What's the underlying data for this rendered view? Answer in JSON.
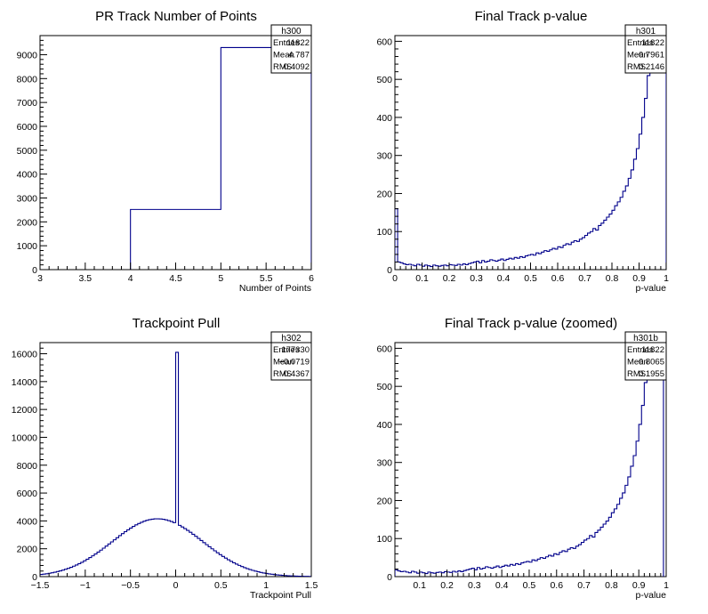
{
  "chart_data": [
    {
      "type": "histogram",
      "title": "PR Track Number of Points",
      "xlabel": "Number of Points",
      "ylabel": "",
      "xlim": [
        3,
        6
      ],
      "ylim": [
        0,
        9800
      ],
      "xticks": [
        {
          "v": 3,
          "l": "3"
        },
        {
          "v": 3.5,
          "l": "3.5"
        },
        {
          "v": 4,
          "l": "4"
        },
        {
          "v": 4.5,
          "l": "4.5"
        },
        {
          "v": 5,
          "l": "5"
        },
        {
          "v": 5.5,
          "l": "5.5"
        },
        {
          "v": 6,
          "l": "6"
        }
      ],
      "yticks": [
        {
          "v": 0,
          "l": "0"
        },
        {
          "v": 1000,
          "l": "1000"
        },
        {
          "v": 2000,
          "l": "2000"
        },
        {
          "v": 3000,
          "l": "3000"
        },
        {
          "v": 4000,
          "l": "4000"
        },
        {
          "v": 5000,
          "l": "5000"
        },
        {
          "v": 6000,
          "l": "6000"
        },
        {
          "v": 7000,
          "l": "7000"
        },
        {
          "v": 8000,
          "l": "8000"
        },
        {
          "v": 9000,
          "l": "9000"
        }
      ],
      "bins": {
        "edges": [
          4,
          5,
          6
        ],
        "values": [
          2520,
          9300
        ]
      },
      "stats": {
        "name": "h300",
        "rows": [
          [
            "Entries",
            "11822"
          ],
          [
            "Mean",
            "4.787"
          ],
          [
            "RMS",
            "0.4092"
          ]
        ]
      }
    },
    {
      "type": "histogram",
      "title": "Final Track p-value",
      "xlabel": "p-value",
      "ylabel": "",
      "xlim": [
        0,
        1
      ],
      "ylim": [
        0,
        615
      ],
      "xticks": [
        {
          "v": 0,
          "l": "0"
        },
        {
          "v": 0.1,
          "l": "0.1"
        },
        {
          "v": 0.2,
          "l": "0.2"
        },
        {
          "v": 0.3,
          "l": "0.3"
        },
        {
          "v": 0.4,
          "l": "0.4"
        },
        {
          "v": 0.5,
          "l": "0.5"
        },
        {
          "v": 0.6,
          "l": "0.6"
        },
        {
          "v": 0.7,
          "l": "0.7"
        },
        {
          "v": 0.8,
          "l": "0.8"
        },
        {
          "v": 0.9,
          "l": "0.9"
        },
        {
          "v": 1,
          "l": "1"
        }
      ],
      "yticks": [
        {
          "v": 0,
          "l": "0"
        },
        {
          "v": 100,
          "l": "100"
        },
        {
          "v": 200,
          "l": "200"
        },
        {
          "v": 300,
          "l": "300"
        },
        {
          "v": 400,
          "l": "400"
        },
        {
          "v": 500,
          "l": "500"
        },
        {
          "v": 600,
          "l": "600"
        }
      ],
      "bins": {
        "start": 0,
        "width": 0.01,
        "values": [
          160,
          20,
          18,
          15,
          13,
          14,
          12,
          10,
          14,
          12,
          9,
          12,
          10,
          8,
          12,
          10,
          9,
          11,
          12,
          10,
          13,
          12,
          11,
          14,
          12,
          15,
          13,
          16,
          18,
          20,
          22,
          18,
          24,
          20,
          22,
          26,
          24,
          22,
          25,
          28,
          24,
          27,
          30,
          28,
          32,
          30,
          34,
          32,
          36,
          38,
          40,
          38,
          44,
          42,
          46,
          50,
          48,
          52,
          56,
          54,
          60,
          58,
          64,
          68,
          66,
          72,
          76,
          74,
          80,
          84,
          90,
          96,
          100,
          108,
          104,
          116,
          122,
          130,
          138,
          146,
          156,
          168,
          178,
          190,
          206,
          220,
          240,
          262,
          290,
          318,
          356,
          400,
          450,
          510,
          540,
          570,
          590,
          600,
          610,
          615
        ]
      },
      "stats": {
        "name": "h301",
        "rows": [
          [
            "Entries",
            "11822"
          ],
          [
            "Mean",
            "0.7961"
          ],
          [
            "RMS",
            "0.2146"
          ]
        ]
      }
    },
    {
      "type": "histogram",
      "title": "Trackpoint Pull",
      "xlabel": "Trackpoint Pull",
      "ylabel": "",
      "xlim": [
        -1.5,
        1.5
      ],
      "ylim": [
        0,
        16800
      ],
      "xticks": [
        {
          "v": -1.5,
          "l": "−1.5"
        },
        {
          "v": -1,
          "l": "−1"
        },
        {
          "v": -0.5,
          "l": "−0.5"
        },
        {
          "v": 0,
          "l": "0"
        },
        {
          "v": 0.5,
          "l": "0.5"
        },
        {
          "v": 1,
          "l": "1"
        },
        {
          "v": 1.5,
          "l": "1.5"
        }
      ],
      "yticks": [
        {
          "v": 0,
          "l": "0"
        },
        {
          "v": 2000,
          "l": "2000"
        },
        {
          "v": 4000,
          "l": "4000"
        },
        {
          "v": 6000,
          "l": "6000"
        },
        {
          "v": 8000,
          "l": "8000"
        },
        {
          "v": 10000,
          "l": "10000"
        },
        {
          "v": 12000,
          "l": "12000"
        },
        {
          "v": 14000,
          "l": "14000"
        },
        {
          "v": 16000,
          "l": "16000"
        }
      ],
      "gaussian": {
        "amplitude": 4150,
        "mean": -0.2,
        "sigma": 0.5
      },
      "spike": {
        "x": 0.0,
        "value": 16100
      },
      "bins": {
        "start": -1.5,
        "width": 0.03,
        "count": 100
      },
      "stats": {
        "name": "h302",
        "rows": [
          [
            "Entries",
            "177330"
          ],
          [
            "Mean",
            "−0.0719"
          ],
          [
            "RMS",
            "0.4367"
          ]
        ]
      }
    },
    {
      "type": "histogram",
      "title": "Final Track p-value (zoomed)",
      "xlabel": "p-value",
      "ylabel": "",
      "xlim": [
        0.01,
        1
      ],
      "ylim": [
        0,
        615
      ],
      "xticks": [
        {
          "v": 0.1,
          "l": "0.1"
        },
        {
          "v": 0.2,
          "l": "0.2"
        },
        {
          "v": 0.3,
          "l": "0.3"
        },
        {
          "v": 0.4,
          "l": "0.4"
        },
        {
          "v": 0.5,
          "l": "0.5"
        },
        {
          "v": 0.6,
          "l": "0.6"
        },
        {
          "v": 0.7,
          "l": "0.7"
        },
        {
          "v": 0.8,
          "l": "0.8"
        },
        {
          "v": 0.9,
          "l": "0.9"
        },
        {
          "v": 1,
          "l": "1"
        }
      ],
      "yticks": [
        {
          "v": 0,
          "l": "0"
        },
        {
          "v": 100,
          "l": "100"
        },
        {
          "v": 200,
          "l": "200"
        },
        {
          "v": 300,
          "l": "300"
        },
        {
          "v": 400,
          "l": "400"
        },
        {
          "v": 500,
          "l": "500"
        },
        {
          "v": 600,
          "l": "600"
        }
      ],
      "bins": {
        "start": 0.01,
        "width": 0.01,
        "values": [
          18,
          15,
          13,
          14,
          12,
          10,
          14,
          12,
          9,
          12,
          10,
          8,
          12,
          10,
          9,
          11,
          12,
          10,
          13,
          12,
          11,
          14,
          12,
          15,
          13,
          16,
          18,
          20,
          22,
          18,
          24,
          20,
          22,
          26,
          24,
          22,
          25,
          28,
          24,
          27,
          30,
          28,
          32,
          30,
          34,
          32,
          36,
          38,
          40,
          38,
          44,
          42,
          46,
          50,
          48,
          52,
          56,
          54,
          60,
          58,
          64,
          68,
          66,
          72,
          76,
          74,
          80,
          84,
          90,
          96,
          100,
          108,
          104,
          116,
          122,
          130,
          138,
          146,
          156,
          168,
          178,
          190,
          206,
          220,
          240,
          262,
          290,
          318,
          356,
          400,
          450,
          510,
          540,
          570,
          590,
          600,
          610,
          615
        ]
      },
      "stats": {
        "name": "h301b",
        "rows": [
          [
            "Entries",
            "11822"
          ],
          [
            "Mean",
            "0.8065"
          ],
          [
            "RMS",
            "0.1955"
          ]
        ]
      }
    }
  ]
}
